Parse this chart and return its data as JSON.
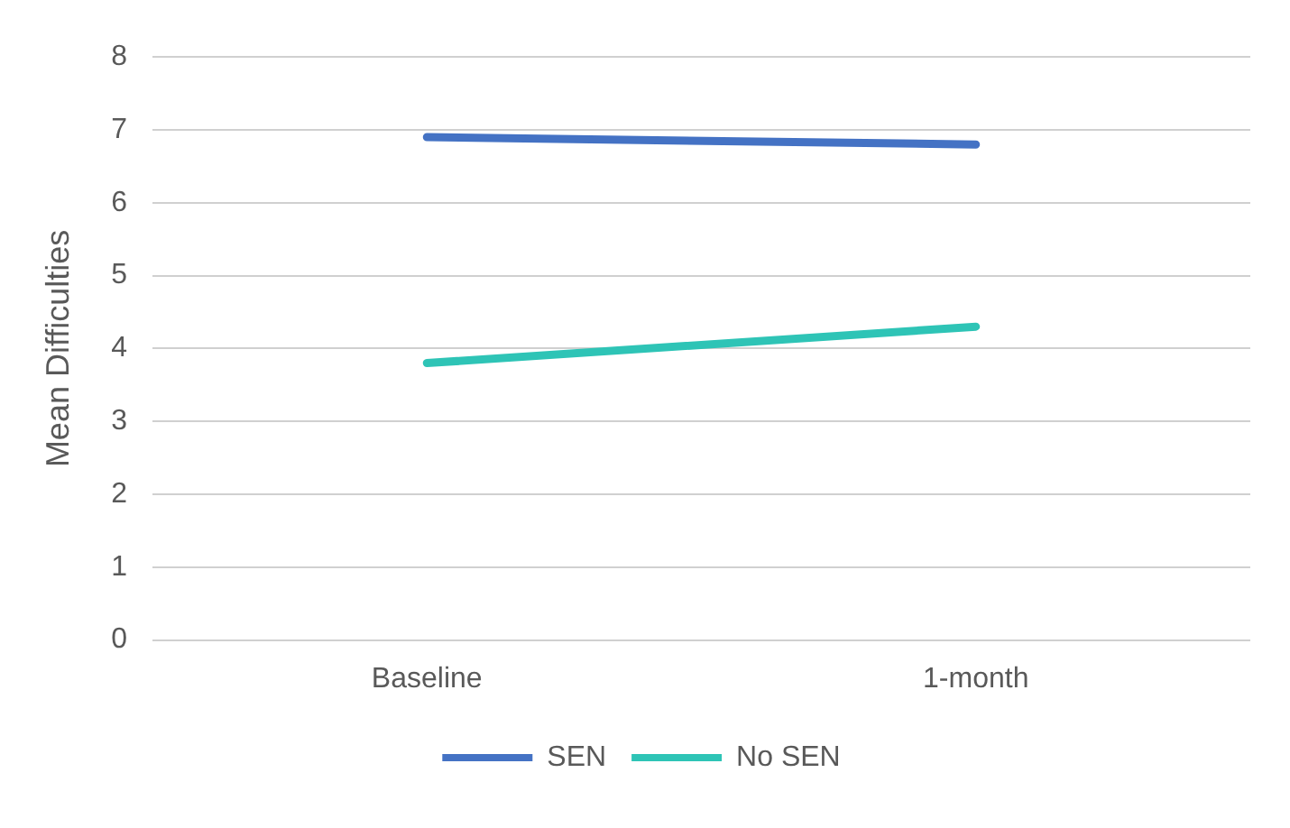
{
  "chart_data": {
    "type": "line",
    "ylabel": "Mean Difficulties",
    "categories": [
      "Baseline",
      "1-month"
    ],
    "series": [
      {
        "name": "SEN",
        "color": "#4472c4",
        "values": [
          6.9,
          6.8
        ]
      },
      {
        "name": "No SEN",
        "color": "#2ec4b6",
        "values": [
          3.8,
          4.3
        ]
      }
    ],
    "ylim": [
      0,
      8
    ],
    "yticks": [
      0,
      1,
      2,
      3,
      4,
      5,
      6,
      7,
      8
    ],
    "grid": "y",
    "legend": "bottom",
    "marker": "none",
    "line_style": "solid"
  }
}
